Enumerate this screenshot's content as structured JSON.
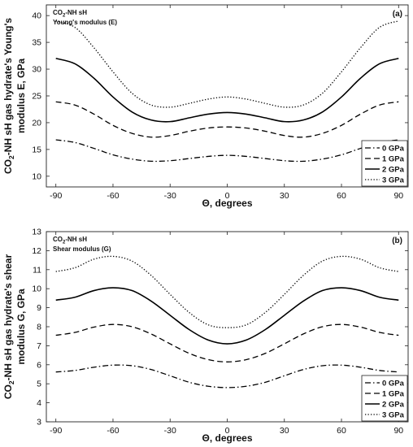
{
  "chart_data": [
    {
      "type": "line",
      "panel_tag": "(a)",
      "note_line1_pre": "CO",
      "note_line1_sub": "2",
      "note_line1_post": "-NH sH",
      "note_line2": "Young's modulus (E)",
      "xlabel": "Θ, degrees",
      "ylabel_line1_pre": "CO",
      "ylabel_line1_sub": "2",
      "ylabel_line1_post": "-NH sH gas hydrate's Young's",
      "ylabel_line2": "modulus E, GPa",
      "xlim": [
        -95,
        95
      ],
      "ylim": [
        8,
        42
      ],
      "xticks": [
        -90,
        -60,
        -30,
        0,
        30,
        60,
        90
      ],
      "yticks": [
        10,
        15,
        20,
        25,
        30,
        35,
        40
      ],
      "x": [
        -90,
        -80,
        -70,
        -60,
        -50,
        -40,
        -30,
        -20,
        -10,
        0,
        10,
        20,
        30,
        40,
        50,
        60,
        70,
        80,
        90
      ],
      "series": [
        {
          "name": "0 GPa",
          "style": "dashdot",
          "values": [
            16.8,
            16.3,
            15.2,
            14.0,
            13.2,
            12.8,
            12.9,
            13.3,
            13.7,
            13.9,
            13.7,
            13.3,
            12.9,
            12.8,
            13.2,
            14.0,
            15.2,
            16.3,
            16.8
          ]
        },
        {
          "name": "1 GPa",
          "style": "dashed",
          "values": [
            23.9,
            23.3,
            21.6,
            19.5,
            18.0,
            17.3,
            17.6,
            18.4,
            19.0,
            19.2,
            19.0,
            18.4,
            17.6,
            17.3,
            18.0,
            19.5,
            21.6,
            23.3,
            23.9
          ]
        },
        {
          "name": "2 GPa",
          "style": "solid",
          "values": [
            32.0,
            31.0,
            28.3,
            24.8,
            22.0,
            20.5,
            20.2,
            20.9,
            21.6,
            21.9,
            21.6,
            20.9,
            20.2,
            20.5,
            22.0,
            24.8,
            28.3,
            31.0,
            32.0
          ]
        },
        {
          "name": "3 GPa",
          "style": "dotted",
          "values": [
            39.0,
            37.8,
            34.0,
            29.5,
            25.5,
            23.3,
            22.9,
            23.6,
            24.4,
            24.8,
            24.4,
            23.6,
            22.9,
            23.3,
            25.5,
            29.5,
            34.0,
            37.8,
            39.0
          ]
        }
      ],
      "legend_position": "lower-right"
    },
    {
      "type": "line",
      "panel_tag": "(b)",
      "note_line1_pre": "CO",
      "note_line1_sub": "2",
      "note_line1_post": "-NH sH",
      "note_line2": "Shear modulus (G)",
      "xlabel": "Θ, degrees",
      "ylabel_line1_pre": "CO",
      "ylabel_line1_sub": "2",
      "ylabel_line1_post": "-NH sH gas hydrate's shear",
      "ylabel_line2": "modulus G, GPa",
      "xlim": [
        -95,
        95
      ],
      "ylim": [
        3,
        13
      ],
      "xticks": [
        -90,
        -60,
        -30,
        0,
        30,
        60,
        90
      ],
      "yticks": [
        3,
        4,
        5,
        6,
        7,
        8,
        9,
        10,
        11,
        12,
        13
      ],
      "x": [
        -90,
        -80,
        -70,
        -60,
        -50,
        -40,
        -30,
        -20,
        -10,
        0,
        10,
        20,
        30,
        40,
        50,
        60,
        70,
        80,
        90
      ],
      "series": [
        {
          "name": "0 GPa",
          "style": "dashdot",
          "values": [
            5.62,
            5.7,
            5.87,
            5.98,
            5.95,
            5.75,
            5.42,
            5.08,
            4.87,
            4.8,
            4.87,
            5.08,
            5.42,
            5.75,
            5.95,
            5.98,
            5.87,
            5.7,
            5.62
          ]
        },
        {
          "name": "1 GPa",
          "style": "dashed",
          "values": [
            7.55,
            7.7,
            7.98,
            8.12,
            8.0,
            7.62,
            7.1,
            6.6,
            6.27,
            6.15,
            6.27,
            6.6,
            7.1,
            7.62,
            8.0,
            8.12,
            7.98,
            7.7,
            7.55
          ]
        },
        {
          "name": "2 GPa",
          "style": "solid",
          "values": [
            9.4,
            9.55,
            9.9,
            10.05,
            9.9,
            9.35,
            8.6,
            7.85,
            7.3,
            7.1,
            7.3,
            7.85,
            8.6,
            9.35,
            9.9,
            10.05,
            9.9,
            9.55,
            9.4
          ]
        },
        {
          "name": "3 GPa",
          "style": "dotted",
          "values": [
            10.9,
            11.1,
            11.55,
            11.7,
            11.45,
            10.7,
            9.7,
            8.75,
            8.1,
            7.95,
            8.1,
            8.75,
            9.7,
            10.7,
            11.45,
            11.7,
            11.55,
            11.1,
            10.9
          ]
        }
      ],
      "legend_position": "lower-right"
    }
  ]
}
